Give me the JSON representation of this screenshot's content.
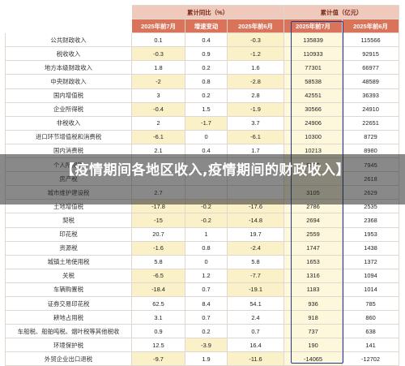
{
  "table": {
    "group_headers": [
      "累计同比（%）",
      "累计值（亿元）"
    ],
    "sub_headers": [
      "2025年前7月",
      "增速变动",
      "2025年前6月",
      "2025年前7月",
      "2025年前6月"
    ],
    "rows": [
      {
        "name": "公共财政收入",
        "c1": "0.1",
        "c2": "0.4",
        "c3": "-0.3",
        "c4": "135839",
        "c5": "115566"
      },
      {
        "name": "税收收入",
        "c1": "-0.3",
        "c2": "0.9",
        "c3": "-1.2",
        "c4": "110933",
        "c5": "92915"
      },
      {
        "name": "地方本级财政收入",
        "c1": "1.8",
        "c2": "0.2",
        "c3": "1.6",
        "c4": "77301",
        "c5": "66977"
      },
      {
        "name": "中央财政收入",
        "c1": "-2",
        "c2": "0.8",
        "c3": "-2.8",
        "c4": "58538",
        "c5": "48589"
      },
      {
        "name": "国内增值税",
        "c1": "3",
        "c2": "0.2",
        "c3": "2.8",
        "c4": "42551",
        "c5": "36393"
      },
      {
        "name": "企业所得税",
        "c1": "-0.4",
        "c2": "1.5",
        "c3": "-1.9",
        "c4": "30566",
        "c5": "24910"
      },
      {
        "name": "非税收入",
        "c1": "2",
        "c2": "-1.7",
        "c3": "3.7",
        "c4": "24906",
        "c5": "22651"
      },
      {
        "name": "进口环节增值税和消费税",
        "c1": "-6.1",
        "c2": "0",
        "c3": "-6.1",
        "c4": "10300",
        "c5": "8729"
      },
      {
        "name": "国内消费税",
        "c1": "2.1",
        "c2": "0.4",
        "c3": "1.7",
        "c4": "10213",
        "c5": "8980"
      },
      {
        "name": "个人所得税",
        "c1": "",
        "c2": "",
        "c3": "",
        "c4": "9379",
        "c5": "7945"
      },
      {
        "name": "房产税",
        "c1": "",
        "c2": "",
        "c3": "",
        "c4": "",
        "c5": "2618"
      },
      {
        "name": "城市维护建设税",
        "c1": "2.7",
        "c2": "",
        "c3": "",
        "c4": "3105",
        "c5": "2629"
      },
      {
        "name": "土地增值税",
        "c1": "-17.8",
        "c2": "-0.2",
        "c3": "-17.6",
        "c4": "2786",
        "c5": "2535"
      },
      {
        "name": "契税",
        "c1": "-15",
        "c2": "-0.2",
        "c3": "-14.8",
        "c4": "2694",
        "c5": "2368"
      },
      {
        "name": "印花税",
        "c1": "20.7",
        "c2": "1",
        "c3": "19.7",
        "c4": "2559",
        "c5": "1953"
      },
      {
        "name": "资源税",
        "c1": "-1.6",
        "c2": "0.8",
        "c3": "-2.4",
        "c4": "1747",
        "c5": "1438"
      },
      {
        "name": "城镇土地使用税",
        "c1": "5.8",
        "c2": "0",
        "c3": "5.8",
        "c4": "1653",
        "c5": "1372"
      },
      {
        "name": "关税",
        "c1": "-6.5",
        "c2": "1.2",
        "c3": "-7.7",
        "c4": "1316",
        "c5": "1094"
      },
      {
        "name": "车辆购置税",
        "c1": "-18.4",
        "c2": "0.7",
        "c3": "-19.1",
        "c4": "1183",
        "c5": "1014"
      },
      {
        "name": "证券交易印花税",
        "c1": "62.5",
        "c2": "8.4",
        "c3": "54.1",
        "c4": "936",
        "c5": "785"
      },
      {
        "name": "耕地占用税",
        "c1": "3.1",
        "c2": "0.7",
        "c3": "2.4",
        "c4": "918",
        "c5": "860"
      },
      {
        "name": "车船税、船舶吨税、烟叶税等其他税收",
        "c1": "0.9",
        "c2": "0.2",
        "c3": "0.7",
        "c4": "737",
        "c5": "638"
      },
      {
        "name": "环境保护税",
        "c1": "12.5",
        "c2": "-3.9",
        "c3": "16.4",
        "c4": "190",
        "c5": "141"
      },
      {
        "name": "外贸企业出口退税",
        "c1": "-9.7",
        "c2": "1.9",
        "c3": "-11.6",
        "c4": "-14065",
        "c5": "-12702"
      }
    ]
  },
  "overlay": {
    "title": "【疫情期间各地区收入,疫情期间的财政收入】"
  },
  "colors": {
    "group_header_bg": "#f0c9bd",
    "sub_header_bg": "#d9745a",
    "negative_cell_bg": "#fbf1c8",
    "highlight_column_bg": "#fdf7dc",
    "highlight_frame": "#1f3b8f"
  }
}
